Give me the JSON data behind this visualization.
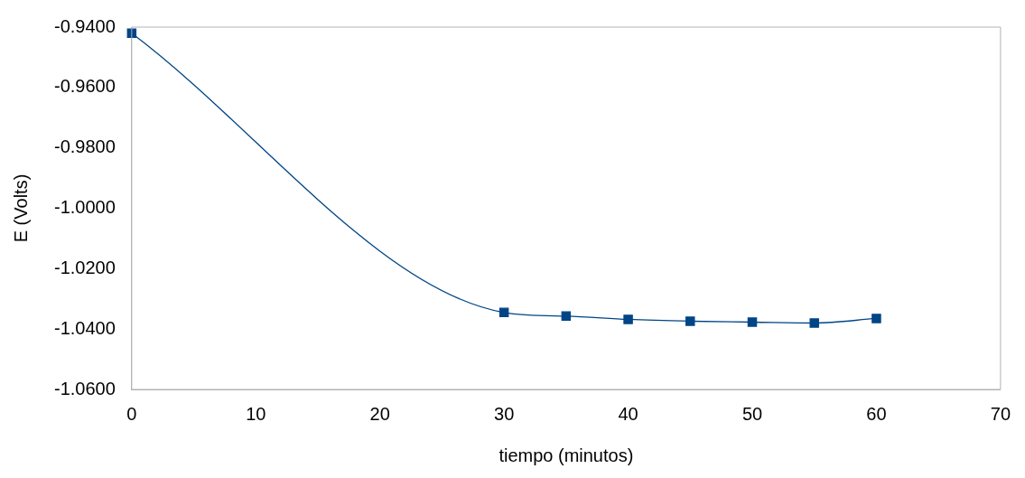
{
  "chart_data": {
    "type": "line",
    "xlabel": "tiempo (minutos)",
    "ylabel": "E (Volts)",
    "x": [
      0,
      30,
      35,
      40,
      45,
      50,
      55,
      60
    ],
    "series": [
      {
        "color": "#004586",
        "values": [
          -0.942,
          -1.0345,
          -1.0357,
          -1.0368,
          -1.0374,
          -1.0377,
          -1.038,
          -1.0365
        ]
      }
    ],
    "xlim": [
      0,
      70
    ],
    "xticks": [
      0,
      10,
      20,
      30,
      40,
      50,
      60,
      70
    ],
    "ylim": [
      -1.06,
      -0.94
    ],
    "yticks": [
      {
        "value": -1.06,
        "label": "-1.0600"
      },
      {
        "value": -1.04,
        "label": "-1.0400"
      },
      {
        "value": -1.02,
        "label": "-1.0200"
      },
      {
        "value": -1.0,
        "label": "-1.0000"
      },
      {
        "value": -0.98,
        "label": "-0.9800"
      },
      {
        "value": -0.96,
        "label": "-0.9600"
      },
      {
        "value": -0.94,
        "label": "-0.9400"
      }
    ],
    "grid": false,
    "legend": false,
    "marker": "square",
    "line_style": "solid"
  }
}
